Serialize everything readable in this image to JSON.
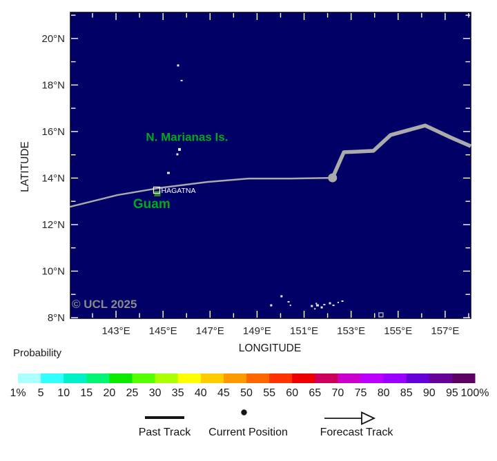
{
  "map": {
    "bg_color": "#000066",
    "lon_min": 141.06,
    "lon_max": 158.09,
    "lat_min": 7.97,
    "lat_max": 21.12,
    "xlabel": "LONGITUDE",
    "ylabel": "LATITUDE",
    "lon_ticks": [
      {
        "deg": 143,
        "label": "143°E"
      },
      {
        "deg": 145,
        "label": "145°E"
      },
      {
        "deg": 147,
        "label": "147°E"
      },
      {
        "deg": 149,
        "label": "149°E"
      },
      {
        "deg": 151,
        "label": "151°E"
      },
      {
        "deg": 153,
        "label": "153°E"
      },
      {
        "deg": 155,
        "label": "155°E"
      },
      {
        "deg": 157,
        "label": "157°E"
      }
    ],
    "lat_ticks": [
      {
        "deg": 8,
        "label": "8°N"
      },
      {
        "deg": 10,
        "label": "10°N"
      },
      {
        "deg": 12,
        "label": "12°N"
      },
      {
        "deg": 14,
        "label": "14°N"
      },
      {
        "deg": 16,
        "label": "16°N"
      },
      {
        "deg": 18,
        "label": "18°N"
      },
      {
        "deg": 20,
        "label": "20°N"
      }
    ],
    "copyright": "© UCL 2025",
    "places": [
      {
        "id": "n-marianas",
        "text": "N. Marianas Is.",
        "lon": 146.02,
        "lat": 15.79,
        "color": "#00a81e",
        "size": 17
      },
      {
        "id": "guam",
        "text": "Guam",
        "lon": 144.52,
        "lat": 12.92,
        "color": "#00a81e",
        "size": 19
      }
    ],
    "city": {
      "name": "HAGATNA",
      "lon": 144.73,
      "lat": 13.48
    },
    "island_patch": {
      "lon": 144.76,
      "lat": 13.33,
      "color": "#1f8a1f"
    },
    "marker_square": {
      "lon": 154.27,
      "lat": 8.12
    },
    "islands": [
      {
        "lon": 145.64,
        "lat": 18.84,
        "w": 3,
        "h": 3
      },
      {
        "lon": 145.79,
        "lat": 18.19,
        "w": 3,
        "h": 2
      },
      {
        "lon": 145.7,
        "lat": 15.23,
        "w": 4,
        "h": 4
      },
      {
        "lon": 145.61,
        "lat": 15.02,
        "w": 3,
        "h": 3
      },
      {
        "lon": 145.23,
        "lat": 14.22,
        "w": 4,
        "h": 3
      },
      {
        "lon": 149.6,
        "lat": 8.53,
        "w": 3,
        "h": 3
      },
      {
        "lon": 150.04,
        "lat": 8.92,
        "w": 3,
        "h": 3
      },
      {
        "lon": 150.34,
        "lat": 8.68,
        "w": 3,
        "h": 2
      },
      {
        "lon": 150.42,
        "lat": 8.53,
        "w": 2,
        "h": 2
      },
      {
        "lon": 151.33,
        "lat": 8.5,
        "w": 3,
        "h": 3
      },
      {
        "lon": 151.46,
        "lat": 8.38,
        "w": 2,
        "h": 2
      },
      {
        "lon": 151.52,
        "lat": 8.61,
        "w": 2,
        "h": 2
      },
      {
        "lon": 151.57,
        "lat": 8.53,
        "w": 4,
        "h": 3
      },
      {
        "lon": 151.75,
        "lat": 8.44,
        "w": 3,
        "h": 3
      },
      {
        "lon": 151.86,
        "lat": 8.56,
        "w": 3,
        "h": 2
      },
      {
        "lon": 152.1,
        "lat": 8.62,
        "w": 3,
        "h": 3
      },
      {
        "lon": 152.25,
        "lat": 8.53,
        "w": 3,
        "h": 2
      },
      {
        "lon": 152.45,
        "lat": 8.65,
        "w": 2,
        "h": 2
      },
      {
        "lon": 152.63,
        "lat": 8.71,
        "w": 3,
        "h": 2
      }
    ]
  },
  "tracks": {
    "color": "#ababab",
    "past": [
      [
        141.06,
        12.77
      ],
      [
        143.06,
        13.27
      ],
      [
        144.82,
        13.57
      ],
      [
        146.87,
        13.83
      ],
      [
        148.63,
        13.98
      ],
      [
        150.4,
        13.98
      ],
      [
        152.21,
        14.01
      ]
    ],
    "forecast": [
      [
        152.21,
        14.01
      ],
      [
        152.69,
        15.11
      ],
      [
        153.95,
        15.17
      ],
      [
        154.68,
        15.85
      ],
      [
        156.15,
        16.26
      ],
      [
        157.27,
        15.73
      ],
      [
        158.09,
        15.37
      ]
    ],
    "current": [
      152.21,
      14.01
    ]
  },
  "colorbar": {
    "title": "Probability",
    "labels": [
      "1%",
      "5",
      "10",
      "15",
      "20",
      "25",
      "30",
      "35",
      "40",
      "45",
      "50",
      "55",
      "60",
      "65",
      "70",
      "75",
      "80",
      "85",
      "90",
      "95",
      "100%"
    ],
    "colors": [
      "#aaffff",
      "#33ffff",
      "#00f0c8",
      "#00f573",
      "#0ce900",
      "#55ff00",
      "#aaff00",
      "#ffff00",
      "#ffcc00",
      "#ff9900",
      "#ff6600",
      "#ff3300",
      "#ee0000",
      "#cc005c",
      "#cc00cc",
      "#bb00ff",
      "#9900ff",
      "#6600d8",
      "#660099",
      "#5c0066"
    ]
  },
  "legend": {
    "past": "Past Track",
    "current": "Current Position",
    "forecast": "Forecast Track"
  }
}
